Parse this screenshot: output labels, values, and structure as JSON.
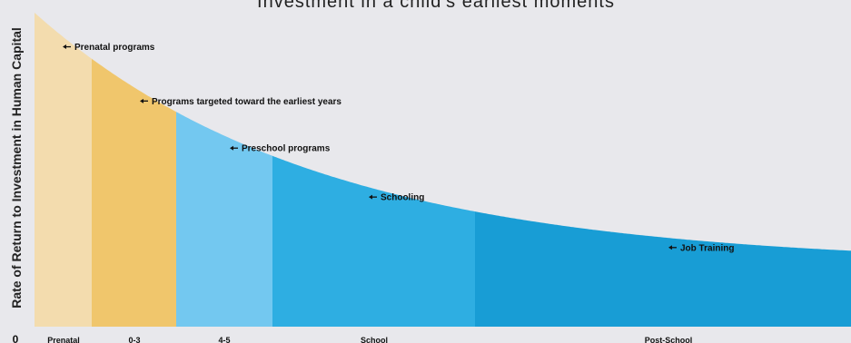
{
  "chart_data": {
    "type": "area",
    "title": "Investment in a child's earliest moments",
    "ylabel": "Rate of Return to Investment in Human Capital",
    "xlabel": "",
    "y_origin_label": "0",
    "categories": [
      "Prenatal",
      "0-3",
      "4-5",
      "School",
      "Post-School"
    ],
    "colors": [
      "#f3dcae",
      "#f0c66c",
      "#73c8f0",
      "#2eaee2",
      "#189dd5"
    ],
    "annotations": [
      "Prenatal programs",
      "Programs targeted toward the earliest years",
      "Preschool programs",
      "Schooling",
      "Job Training"
    ],
    "legend": "none",
    "grid": false
  }
}
